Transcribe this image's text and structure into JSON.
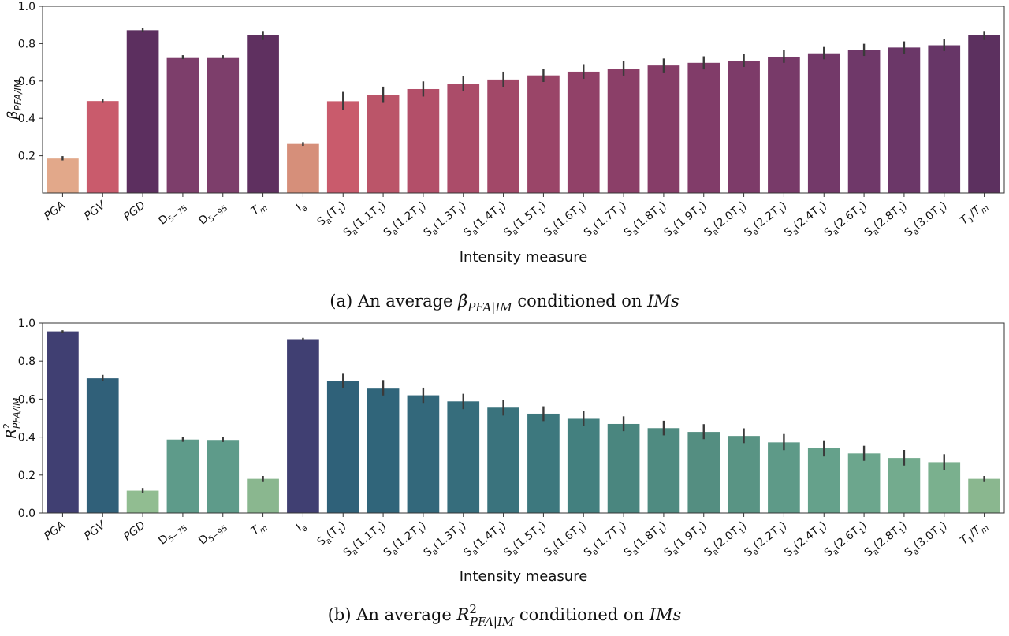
{
  "chart_data": [
    {
      "type": "bar",
      "panel": "a",
      "ylabel": "β",
      "ylabel_sub": "PFA/IM",
      "xlabel": "Intensity measure",
      "ylim": [
        0.0,
        1.0
      ],
      "yticks": [
        "0.2",
        "0.4",
        "0.6",
        "0.8",
        "1.0"
      ],
      "ytick_values": [
        0.2,
        0.4,
        0.6,
        0.8,
        1.0
      ],
      "caption": {
        "prefix": "(a) An average ",
        "symbol": "β",
        "symbol_sub": "PFA|IM",
        "middle": " conditioned on ",
        "suffix": "IMs"
      },
      "categories": [
        {
          "main": "PGA"
        },
        {
          "main": "PGV"
        },
        {
          "main": "PGD"
        },
        {
          "main": "D",
          "sub": "5−75"
        },
        {
          "main": "D",
          "sub": "5−95"
        },
        {
          "main": "T",
          "sub": "m"
        },
        {
          "main": "I",
          "sub": "a"
        },
        {
          "main": "S",
          "sub": "a",
          "paren": "T",
          "psub": "1"
        },
        {
          "main": "S",
          "sub": "a",
          "paren": "1.1T",
          "psub": "1"
        },
        {
          "main": "S",
          "sub": "a",
          "paren": "1.2T",
          "psub": "1"
        },
        {
          "main": "S",
          "sub": "a",
          "paren": "1.3T",
          "psub": "1"
        },
        {
          "main": "S",
          "sub": "a",
          "paren": "1.4T",
          "psub": "1"
        },
        {
          "main": "S",
          "sub": "a",
          "paren": "1.5T",
          "psub": "1"
        },
        {
          "main": "S",
          "sub": "a",
          "paren": "1.6T",
          "psub": "1"
        },
        {
          "main": "S",
          "sub": "a",
          "paren": "1.7T",
          "psub": "1"
        },
        {
          "main": "S",
          "sub": "a",
          "paren": "1.8T",
          "psub": "1"
        },
        {
          "main": "S",
          "sub": "a",
          "paren": "1.9T",
          "psub": "1"
        },
        {
          "main": "S",
          "sub": "a",
          "paren": "2.0T",
          "psub": "1"
        },
        {
          "main": "S",
          "sub": "a",
          "paren": "2.2T",
          "psub": "1"
        },
        {
          "main": "S",
          "sub": "a",
          "paren": "2.4T",
          "psub": "1"
        },
        {
          "main": "S",
          "sub": "a",
          "paren": "2.6T",
          "psub": "1"
        },
        {
          "main": "S",
          "sub": "a",
          "paren": "2.8T",
          "psub": "1"
        },
        {
          "main": "S",
          "sub": "a",
          "paren": "3.0T",
          "psub": "1"
        },
        {
          "main": "T",
          "sub": "1",
          "ratio": "T",
          "rsub": "m"
        }
      ],
      "values": [
        0.185,
        0.493,
        0.872,
        0.727,
        0.727,
        0.844,
        0.263,
        0.492,
        0.526,
        0.557,
        0.584,
        0.608,
        0.63,
        0.65,
        0.666,
        0.683,
        0.697,
        0.708,
        0.73,
        0.748,
        0.766,
        0.779,
        0.791,
        0.845
      ],
      "err_low": [
        0.175,
        0.483,
        0.862,
        0.717,
        0.719,
        0.82,
        0.253,
        0.445,
        0.483,
        0.517,
        0.545,
        0.568,
        0.595,
        0.612,
        0.629,
        0.646,
        0.662,
        0.675,
        0.697,
        0.716,
        0.734,
        0.746,
        0.76,
        0.82
      ],
      "err_high": [
        0.198,
        0.506,
        0.884,
        0.738,
        0.738,
        0.868,
        0.273,
        0.542,
        0.57,
        0.598,
        0.625,
        0.65,
        0.666,
        0.69,
        0.705,
        0.72,
        0.732,
        0.743,
        0.765,
        0.782,
        0.799,
        0.812,
        0.823,
        0.868
      ],
      "colors": [
        "#e2a88a",
        "#c95b6c",
        "#5c2f5f",
        "#7d3e6b",
        "#7d3e6b",
        "#5f3060",
        "#d68f7a",
        "#c95b6c",
        "#bb5569",
        "#b34f69",
        "#ab4c69",
        "#a24868",
        "#9a4568",
        "#914168",
        "#8b3f68",
        "#863d68",
        "#813c69",
        "#7d3b69",
        "#783a69",
        "#733969",
        "#6f3869",
        "#6b3768",
        "#673667",
        "#5c305f"
      ]
    },
    {
      "type": "bar",
      "panel": "b",
      "ylabel": "R",
      "ylabel_sup": "2",
      "ylabel_sub": "PFA/IM",
      "xlabel": "Intensity measure",
      "ylim": [
        0.0,
        1.0
      ],
      "yticks": [
        "0.0",
        "0.2",
        "0.4",
        "0.6",
        "0.8",
        "1.0"
      ],
      "ytick_values": [
        0.0,
        0.2,
        0.4,
        0.6,
        0.8,
        1.0
      ],
      "caption": {
        "prefix": "(b) An average ",
        "symbol": "R",
        "symbol_sup": "2",
        "symbol_sub": "PFA|IM",
        "middle": " conditioned on ",
        "suffix": "IMs"
      },
      "categories": [
        {
          "main": "PGA"
        },
        {
          "main": "PGV"
        },
        {
          "main": "PGD"
        },
        {
          "main": "D",
          "sub": "5−75"
        },
        {
          "main": "D",
          "sub": "5−95"
        },
        {
          "main": "T",
          "sub": "m"
        },
        {
          "main": "I",
          "sub": "a"
        },
        {
          "main": "S",
          "sub": "a",
          "paren": "T",
          "psub": "1"
        },
        {
          "main": "S",
          "sub": "a",
          "paren": "1.1T",
          "psub": "1"
        },
        {
          "main": "S",
          "sub": "a",
          "paren": "1.2T",
          "psub": "1"
        },
        {
          "main": "S",
          "sub": "a",
          "paren": "1.3T",
          "psub": "1"
        },
        {
          "main": "S",
          "sub": "a",
          "paren": "1.4T",
          "psub": "1"
        },
        {
          "main": "S",
          "sub": "a",
          "paren": "1.5T",
          "psub": "1"
        },
        {
          "main": "S",
          "sub": "a",
          "paren": "1.6T",
          "psub": "1"
        },
        {
          "main": "S",
          "sub": "a",
          "paren": "1.7T",
          "psub": "1"
        },
        {
          "main": "S",
          "sub": "a",
          "paren": "1.8T",
          "psub": "1"
        },
        {
          "main": "S",
          "sub": "a",
          "paren": "1.9T",
          "psub": "1"
        },
        {
          "main": "S",
          "sub": "a",
          "paren": "2.0T",
          "psub": "1"
        },
        {
          "main": "S",
          "sub": "a",
          "paren": "2.2T",
          "psub": "1"
        },
        {
          "main": "S",
          "sub": "a",
          "paren": "2.4T",
          "psub": "1"
        },
        {
          "main": "S",
          "sub": "a",
          "paren": "2.6T",
          "psub": "1"
        },
        {
          "main": "S",
          "sub": "a",
          "paren": "2.8T",
          "psub": "1"
        },
        {
          "main": "S",
          "sub": "a",
          "paren": "3.0T",
          "psub": "1"
        },
        {
          "main": "T",
          "sub": "1",
          "ratio": "T",
          "rsub": "m"
        }
      ],
      "values": [
        0.956,
        0.709,
        0.118,
        0.387,
        0.385,
        0.18,
        0.915,
        0.697,
        0.659,
        0.62,
        0.588,
        0.555,
        0.523,
        0.496,
        0.469,
        0.447,
        0.427,
        0.406,
        0.372,
        0.341,
        0.314,
        0.29,
        0.268,
        0.18
      ],
      "err_low": [
        0.95,
        0.693,
        0.105,
        0.375,
        0.374,
        0.167,
        0.908,
        0.66,
        0.619,
        0.58,
        0.547,
        0.513,
        0.484,
        0.457,
        0.431,
        0.409,
        0.389,
        0.368,
        0.331,
        0.298,
        0.275,
        0.25,
        0.228,
        0.167
      ],
      "err_high": [
        0.962,
        0.727,
        0.132,
        0.402,
        0.399,
        0.195,
        0.922,
        0.737,
        0.7,
        0.66,
        0.628,
        0.596,
        0.562,
        0.536,
        0.509,
        0.486,
        0.468,
        0.446,
        0.416,
        0.383,
        0.354,
        0.332,
        0.31,
        0.195
      ],
      "colors": [
        "#403f72",
        "#306079",
        "#91bd91",
        "#5e9b8a",
        "#5e9b8a",
        "#8ab78f",
        "#403f72",
        "#2f6179",
        "#30657a",
        "#33687b",
        "#366d7c",
        "#3a737d",
        "#3d787e",
        "#43807f",
        "#4a867f",
        "#4f8b81",
        "#548e81",
        "#599484",
        "#5e9a88",
        "#65a18b",
        "#6ca68d",
        "#73ab8e",
        "#7ab08e",
        "#8ab78f"
      ]
    }
  ]
}
